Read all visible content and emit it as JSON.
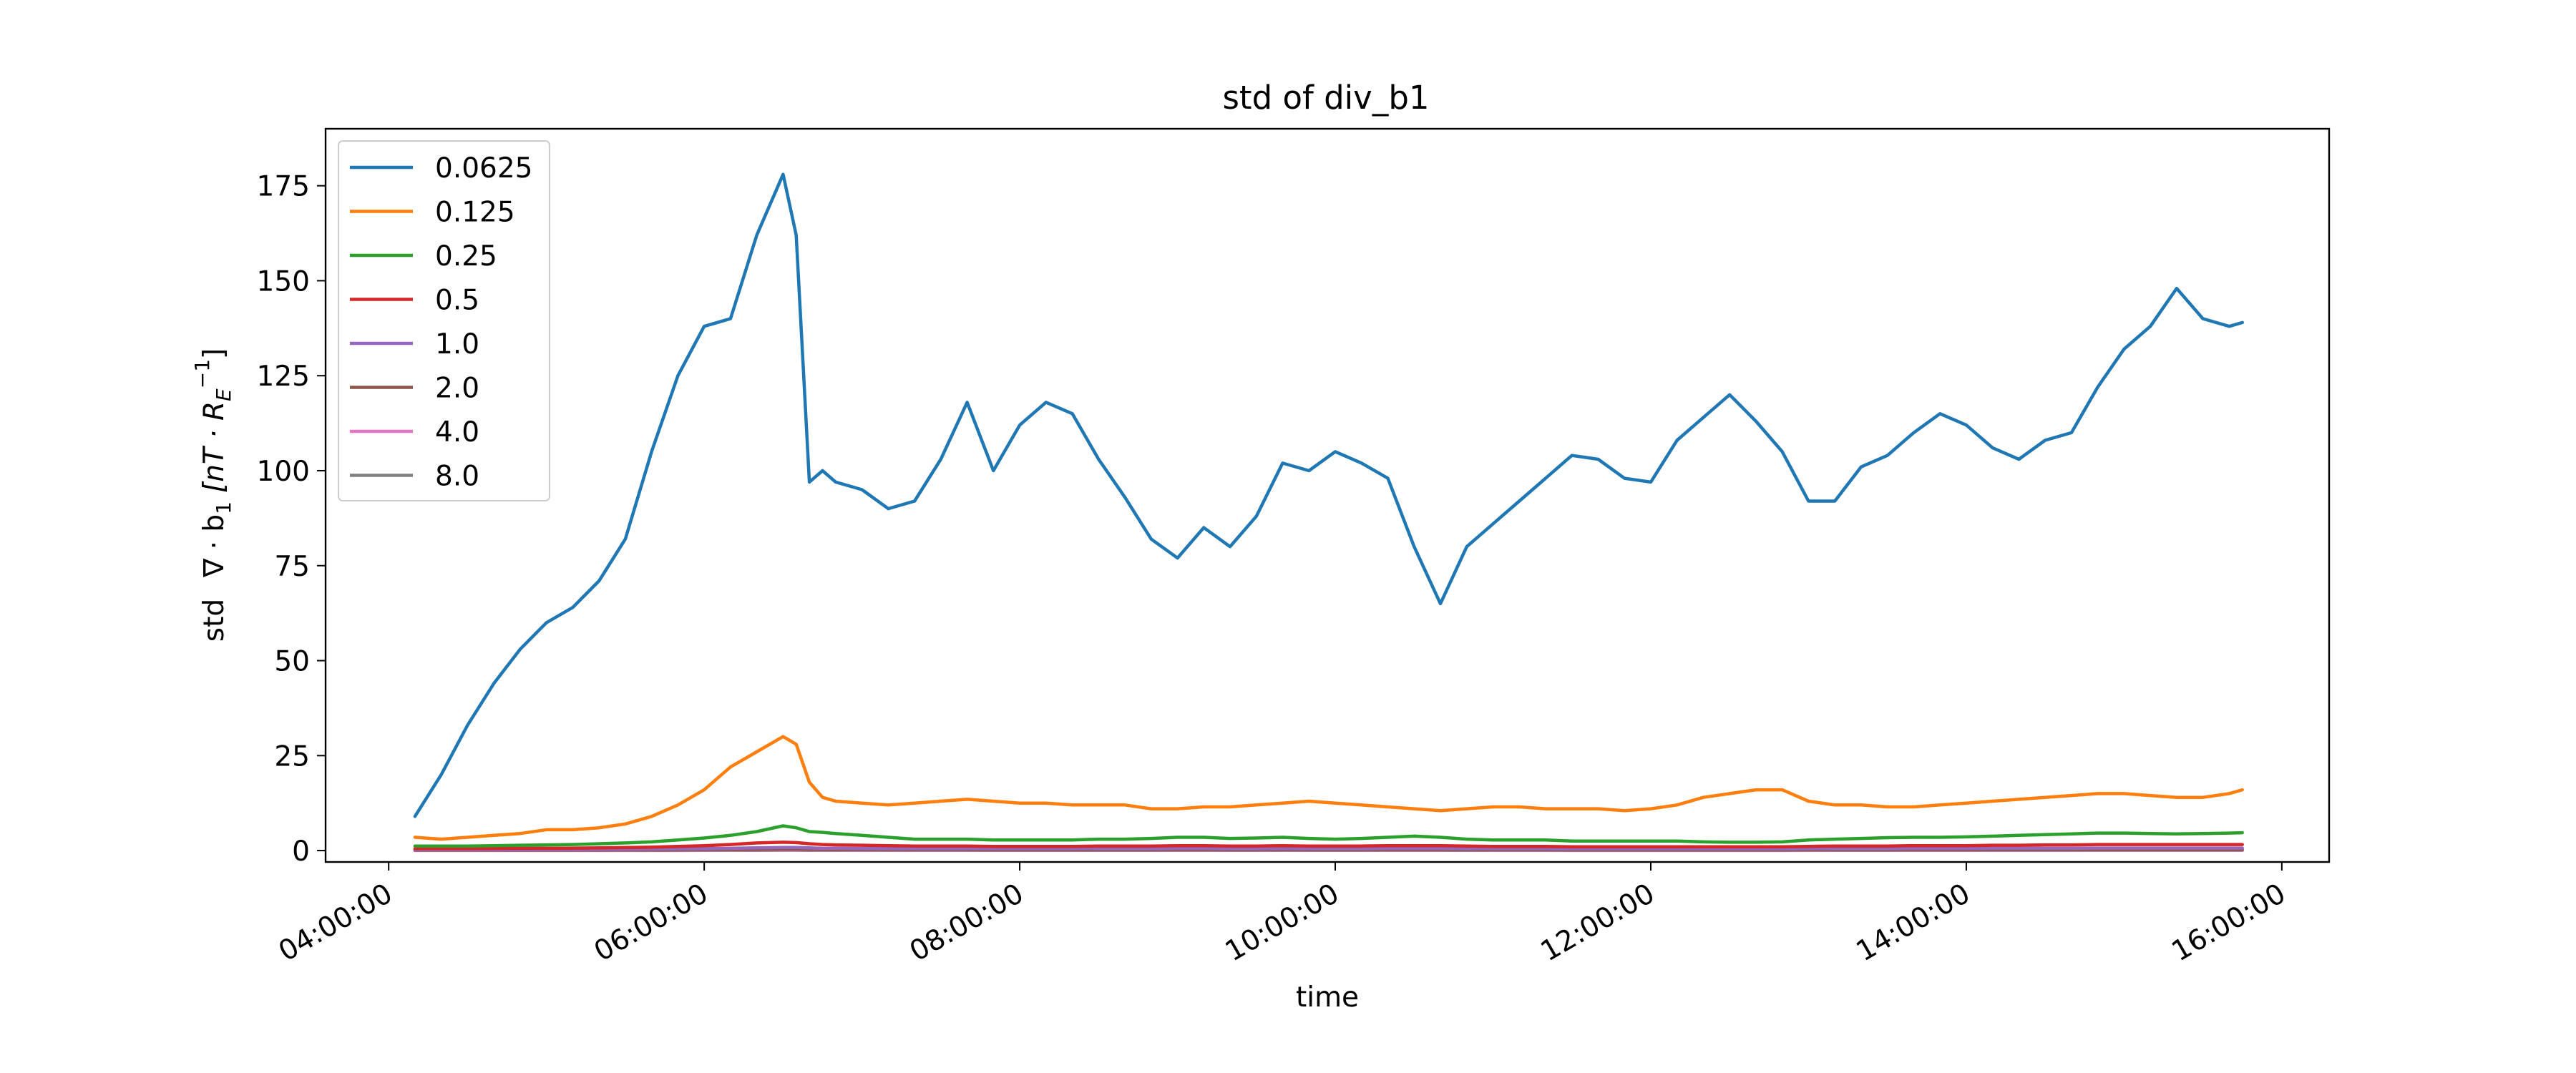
{
  "chart_data": {
    "type": "line",
    "title": "std of div_b1",
    "xlabel": "time",
    "ylabel": {
      "prefix": "std",
      "formula": "∇ · b",
      "subscript": "1",
      "units_open": "[nT · R",
      "units_sub": "E",
      "units_sup": "−1",
      "units_close": "]"
    },
    "xlim": [
      "03:36:00",
      "16:18:00"
    ],
    "ylim": [
      -3,
      190
    ],
    "x_ticks": [
      "04:00:00",
      "06:00:00",
      "08:00:00",
      "10:00:00",
      "12:00:00",
      "14:00:00",
      "16:00:00"
    ],
    "y_ticks": [
      0,
      25,
      50,
      75,
      100,
      125,
      150,
      175
    ],
    "grid": false,
    "legend_position": "top-left",
    "x": [
      "04:10:00",
      "04:20:00",
      "04:30:00",
      "04:40:00",
      "04:50:00",
      "05:00:00",
      "05:10:00",
      "05:20:00",
      "05:30:00",
      "05:40:00",
      "05:50:00",
      "06:00:00",
      "06:10:00",
      "06:20:00",
      "06:30:00",
      "06:35:00",
      "06:40:00",
      "06:45:00",
      "06:50:00",
      "07:00:00",
      "07:10:00",
      "07:20:00",
      "07:30:00",
      "07:40:00",
      "07:50:00",
      "08:00:00",
      "08:10:00",
      "08:20:00",
      "08:30:00",
      "08:40:00",
      "08:50:00",
      "09:00:00",
      "09:10:00",
      "09:20:00",
      "09:30:00",
      "09:40:00",
      "09:50:00",
      "10:00:00",
      "10:10:00",
      "10:20:00",
      "10:30:00",
      "10:40:00",
      "10:50:00",
      "11:00:00",
      "11:10:00",
      "11:20:00",
      "11:30:00",
      "11:40:00",
      "11:50:00",
      "12:00:00",
      "12:10:00",
      "12:20:00",
      "12:30:00",
      "12:40:00",
      "12:50:00",
      "13:00:00",
      "13:10:00",
      "13:20:00",
      "13:30:00",
      "13:40:00",
      "13:50:00",
      "14:00:00",
      "14:10:00",
      "14:20:00",
      "14:30:00",
      "14:40:00",
      "14:50:00",
      "15:00:00",
      "15:10:00",
      "15:20:00",
      "15:30:00",
      "15:40:00",
      "15:45:00"
    ],
    "series": [
      {
        "name": "0.0625",
        "color": "#1f77b4",
        "values": [
          9,
          20,
          33,
          44,
          53,
          60,
          64,
          71,
          82,
          105,
          125,
          138,
          140,
          162,
          178,
          162,
          97,
          100,
          97,
          95,
          90,
          92,
          103,
          118,
          100,
          112,
          118,
          115,
          103,
          93,
          82,
          77,
          85,
          80,
          88,
          102,
          100,
          105,
          102,
          98,
          80,
          65,
          80,
          86,
          92,
          98,
          104,
          103,
          98,
          97,
          108,
          114,
          120,
          113,
          105,
          92,
          92,
          101,
          104,
          110,
          115,
          112,
          106,
          103,
          108,
          110,
          122,
          132,
          138,
          148,
          140,
          138,
          139
        ]
      },
      {
        "name": "0.125",
        "color": "#ff7f0e",
        "values": [
          3.5,
          3,
          3.5,
          4,
          4.5,
          5.5,
          5.5,
          6,
          7,
          9,
          12,
          16,
          22,
          26,
          30,
          28,
          18,
          14,
          13,
          12.5,
          12,
          12.5,
          13,
          13.5,
          13,
          12.5,
          12.5,
          12,
          12,
          12,
          11,
          11,
          11.5,
          11.5,
          12,
          12.5,
          13,
          12.5,
          12,
          11.5,
          11,
          10.5,
          11,
          11.5,
          11.5,
          11,
          11,
          11,
          10.5,
          11,
          12,
          14,
          15,
          16,
          16,
          13,
          12,
          12,
          11.5,
          11.5,
          12,
          12.5,
          13,
          13.5,
          14,
          14.5,
          15,
          15,
          14.5,
          14,
          14,
          15,
          16
        ]
      },
      {
        "name": "0.25",
        "color": "#2ca02c",
        "values": [
          1.2,
          1.2,
          1.2,
          1.3,
          1.4,
          1.5,
          1.6,
          1.8,
          2,
          2.3,
          2.8,
          3.3,
          4,
          5,
          6.5,
          6,
          5,
          4.8,
          4.5,
          4,
          3.5,
          3,
          3,
          3,
          2.8,
          2.8,
          2.8,
          2.8,
          3,
          3,
          3.2,
          3.5,
          3.5,
          3.2,
          3.3,
          3.5,
          3.2,
          3,
          3.2,
          3.5,
          3.8,
          3.5,
          3,
          2.8,
          2.8,
          2.8,
          2.5,
          2.5,
          2.5,
          2.5,
          2.5,
          2.3,
          2.2,
          2.2,
          2.3,
          2.8,
          3,
          3.2,
          3.4,
          3.5,
          3.5,
          3.6,
          3.8,
          4,
          4.2,
          4.4,
          4.6,
          4.6,
          4.5,
          4.4,
          4.5,
          4.6,
          4.7
        ]
      },
      {
        "name": "0.5",
        "color": "#d62728",
        "values": [
          0.5,
          0.5,
          0.5,
          0.55,
          0.6,
          0.6,
          0.65,
          0.7,
          0.8,
          0.9,
          1.1,
          1.3,
          1.6,
          2,
          2.2,
          2.1,
          1.8,
          1.6,
          1.5,
          1.4,
          1.3,
          1.2,
          1.2,
          1.2,
          1.1,
          1.1,
          1.1,
          1.1,
          1.2,
          1.2,
          1.2,
          1.3,
          1.3,
          1.2,
          1.2,
          1.3,
          1.2,
          1.2,
          1.2,
          1.3,
          1.3,
          1.3,
          1.2,
          1.1,
          1.1,
          1.1,
          1,
          1,
          1,
          1,
          1,
          1,
          1,
          1,
          1,
          1.1,
          1.2,
          1.2,
          1.2,
          1.3,
          1.3,
          1.3,
          1.4,
          1.4,
          1.5,
          1.5,
          1.6,
          1.6,
          1.6,
          1.6,
          1.6,
          1.6,
          1.6
        ]
      },
      {
        "name": "1.0",
        "color": "#9467bd",
        "values": [
          0.25,
          0.25,
          0.25,
          0.25,
          0.25,
          0.3,
          0.3,
          0.3,
          0.35,
          0.4,
          0.45,
          0.5,
          0.6,
          0.7,
          0.8,
          0.8,
          0.7,
          0.6,
          0.6,
          0.55,
          0.5,
          0.5,
          0.5,
          0.5,
          0.5,
          0.5,
          0.5,
          0.5,
          0.5,
          0.5,
          0.5,
          0.55,
          0.55,
          0.5,
          0.5,
          0.55,
          0.5,
          0.5,
          0.5,
          0.55,
          0.55,
          0.55,
          0.5,
          0.5,
          0.5,
          0.5,
          0.45,
          0.45,
          0.45,
          0.45,
          0.45,
          0.45,
          0.45,
          0.45,
          0.45,
          0.5,
          0.5,
          0.5,
          0.5,
          0.55,
          0.55,
          0.55,
          0.6,
          0.6,
          0.6,
          0.6,
          0.65,
          0.65,
          0.65,
          0.65,
          0.65,
          0.65,
          0.65
        ]
      },
      {
        "name": "2.0",
        "color": "#8c564b",
        "values": [
          0.12,
          0.12,
          0.12,
          0.12,
          0.12,
          0.13,
          0.13,
          0.13,
          0.15,
          0.17,
          0.19,
          0.22,
          0.26,
          0.3,
          0.35,
          0.35,
          0.3,
          0.27,
          0.26,
          0.24,
          0.22,
          0.22,
          0.22,
          0.22,
          0.21,
          0.21,
          0.21,
          0.21,
          0.21,
          0.21,
          0.21,
          0.22,
          0.22,
          0.21,
          0.21,
          0.22,
          0.21,
          0.21,
          0.21,
          0.22,
          0.22,
          0.22,
          0.21,
          0.2,
          0.2,
          0.2,
          0.19,
          0.19,
          0.19,
          0.19,
          0.19,
          0.19,
          0.19,
          0.19,
          0.19,
          0.2,
          0.21,
          0.21,
          0.21,
          0.22,
          0.22,
          0.22,
          0.23,
          0.23,
          0.24,
          0.24,
          0.25,
          0.25,
          0.25,
          0.25,
          0.25,
          0.25,
          0.25
        ]
      },
      {
        "name": "4.0",
        "color": "#e377c2",
        "values": [
          0.06,
          0.06,
          0.06,
          0.06,
          0.06,
          0.06,
          0.06,
          0.06,
          0.07,
          0.08,
          0.09,
          0.1,
          0.12,
          0.14,
          0.16,
          0.16,
          0.14,
          0.12,
          0.12,
          0.11,
          0.1,
          0.1,
          0.1,
          0.1,
          0.1,
          0.1,
          0.1,
          0.1,
          0.1,
          0.1,
          0.1,
          0.1,
          0.1,
          0.1,
          0.1,
          0.1,
          0.1,
          0.1,
          0.1,
          0.1,
          0.1,
          0.1,
          0.1,
          0.09,
          0.09,
          0.09,
          0.09,
          0.09,
          0.09,
          0.09,
          0.09,
          0.09,
          0.09,
          0.09,
          0.09,
          0.09,
          0.1,
          0.1,
          0.1,
          0.1,
          0.1,
          0.1,
          0.1,
          0.1,
          0.11,
          0.11,
          0.11,
          0.11,
          0.11,
          0.11,
          0.11,
          0.11,
          0.11
        ]
      },
      {
        "name": "8.0",
        "color": "#7f7f7f",
        "values": [
          0.03,
          0.03,
          0.03,
          0.03,
          0.03,
          0.03,
          0.03,
          0.03,
          0.03,
          0.04,
          0.04,
          0.05,
          0.06,
          0.07,
          0.08,
          0.08,
          0.07,
          0.06,
          0.06,
          0.05,
          0.05,
          0.05,
          0.05,
          0.05,
          0.05,
          0.05,
          0.05,
          0.05,
          0.05,
          0.05,
          0.05,
          0.05,
          0.05,
          0.05,
          0.05,
          0.05,
          0.05,
          0.05,
          0.05,
          0.05,
          0.05,
          0.05,
          0.05,
          0.05,
          0.05,
          0.05,
          0.04,
          0.04,
          0.04,
          0.04,
          0.04,
          0.04,
          0.04,
          0.04,
          0.04,
          0.05,
          0.05,
          0.05,
          0.05,
          0.05,
          0.05,
          0.05,
          0.05,
          0.05,
          0.05,
          0.05,
          0.05,
          0.05,
          0.05,
          0.05,
          0.05,
          0.05,
          0.05
        ]
      }
    ]
  }
}
